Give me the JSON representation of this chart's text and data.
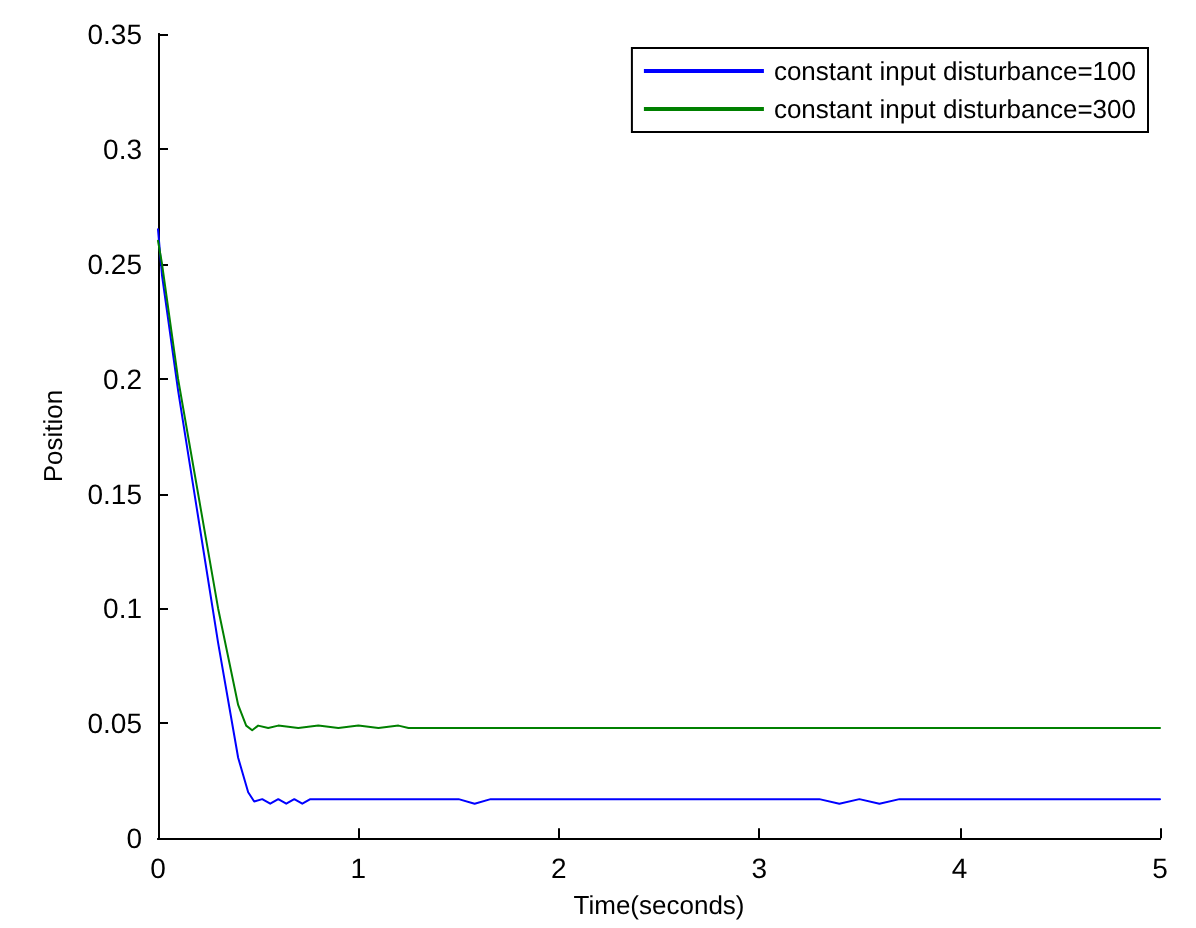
{
  "chart_data": {
    "type": "line",
    "xlabel": "Time(seconds)",
    "ylabel": "Position",
    "xlim": [
      0,
      5
    ],
    "xticks": [
      0,
      1,
      2,
      3,
      4,
      5
    ],
    "ylim": [
      0,
      0.35
    ],
    "yticks": [
      0,
      0.05,
      0.1,
      0.15,
      0.2,
      0.25,
      0.3,
      0.35
    ],
    "grid": false,
    "legend": "top right",
    "marker": "none",
    "line_style": "solid",
    "series": [
      {
        "name": "constant input disturbance=100",
        "color": "#0000ff",
        "x": [
          0,
          0.02,
          0.1,
          0.2,
          0.3,
          0.4,
          0.45,
          0.48,
          0.52,
          0.56,
          0.6,
          0.64,
          0.68,
          0.72,
          0.76,
          0.8,
          1,
          1.5,
          1.58,
          1.66,
          1.8,
          1.9,
          2.5,
          3.3,
          3.4,
          3.5,
          3.6,
          3.7,
          4,
          5
        ],
        "values": [
          0.265,
          0.245,
          0.195,
          0.14,
          0.085,
          0.035,
          0.02,
          0.016,
          0.017,
          0.015,
          0.017,
          0.015,
          0.017,
          0.015,
          0.017,
          0.017,
          0.017,
          0.017,
          0.015,
          0.017,
          0.017,
          0.017,
          0.017,
          0.017,
          0.015,
          0.017,
          0.015,
          0.017,
          0.017,
          0.017
        ]
      },
      {
        "name": "constant input disturbance=300",
        "color": "#008000",
        "x": [
          0,
          0.02,
          0.1,
          0.2,
          0.3,
          0.4,
          0.44,
          0.47,
          0.5,
          0.55,
          0.6,
          0.7,
          0.8,
          0.9,
          1,
          1.1,
          1.2,
          1.25,
          2,
          3,
          4,
          5
        ],
        "values": [
          0.26,
          0.25,
          0.2,
          0.15,
          0.1,
          0.058,
          0.049,
          0.047,
          0.049,
          0.048,
          0.049,
          0.048,
          0.049,
          0.048,
          0.049,
          0.048,
          0.049,
          0.048,
          0.048,
          0.048,
          0.048,
          0.048
        ]
      }
    ]
  }
}
